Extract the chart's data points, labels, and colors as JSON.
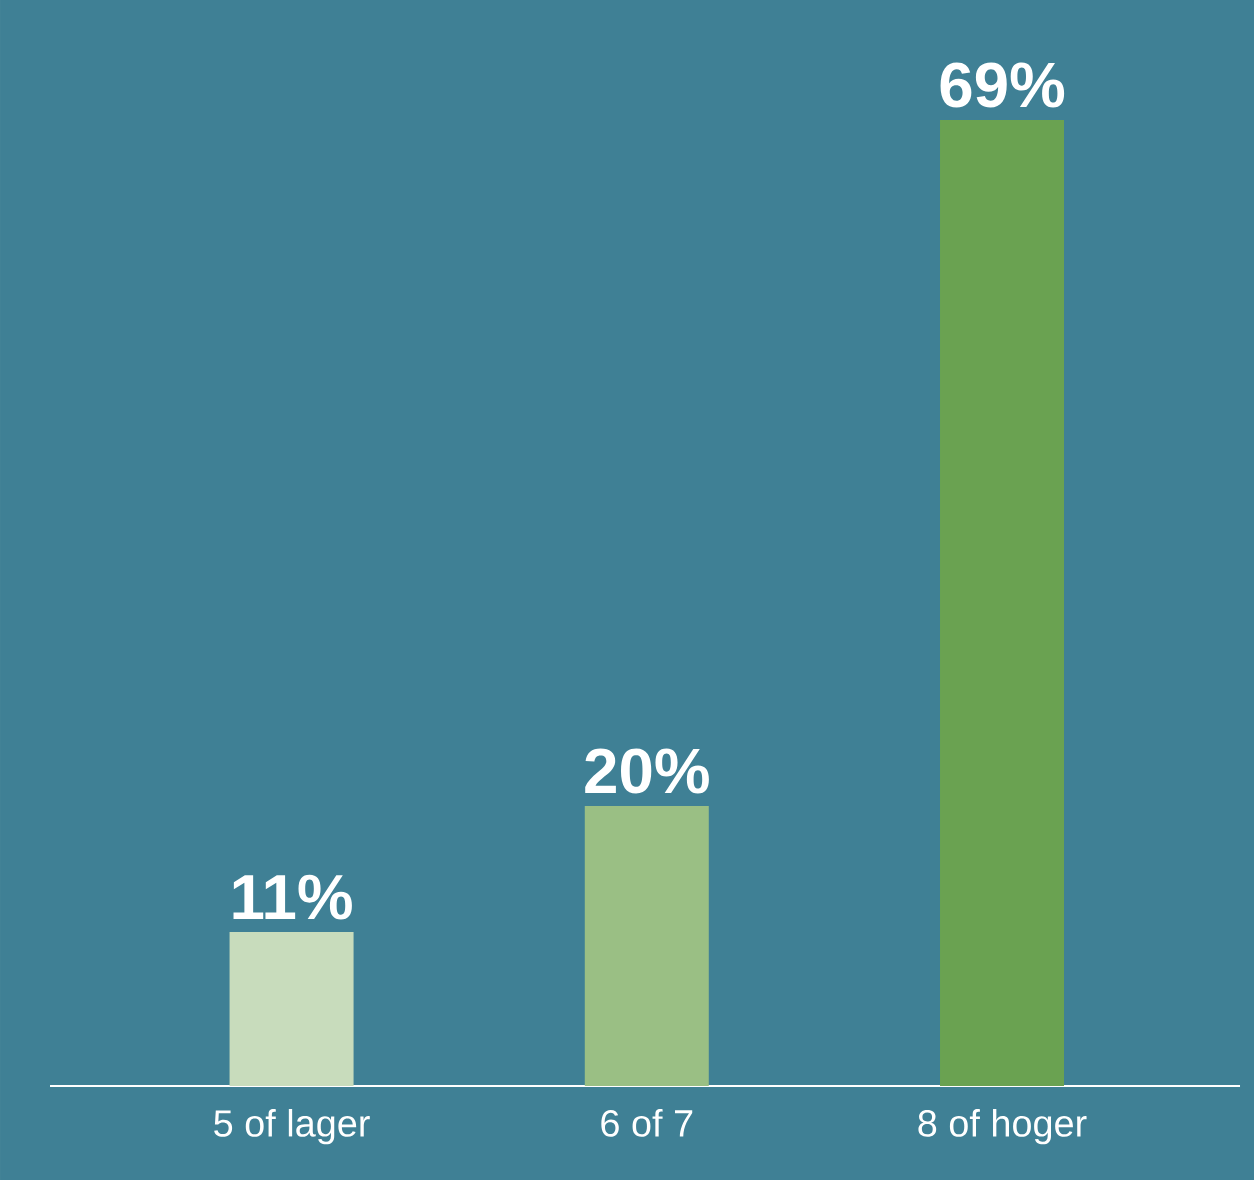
{
  "chart_data": {
    "type": "bar",
    "categories": [
      "5 of lager",
      "6 of 7",
      "8 of hoger"
    ],
    "values": [
      11,
      20,
      69
    ],
    "colors": [
      "#c8dcbc",
      "#9abf84",
      "#6aa251"
    ],
    "value_labels": [
      "11%",
      "20%",
      "69%"
    ]
  }
}
